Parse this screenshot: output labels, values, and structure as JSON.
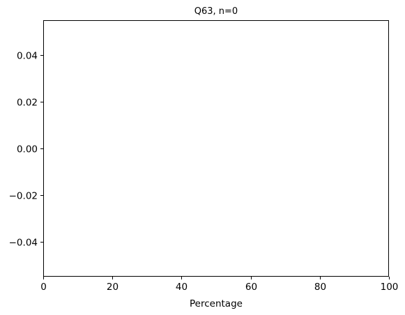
{
  "chart_data": {
    "type": "bar",
    "title": "Q63, n=0",
    "xlabel": "Percentage",
    "ylabel": "",
    "xlim": [
      0,
      100
    ],
    "ylim": [
      -0.055,
      0.055
    ],
    "x_ticks": [
      0,
      20,
      40,
      60,
      80,
      100
    ],
    "x_tick_labels": [
      "0",
      "20",
      "40",
      "60",
      "80",
      "100"
    ],
    "y_ticks": [
      -0.04,
      -0.02,
      0.0,
      0.02,
      0.04
    ],
    "y_tick_labels": [
      "−0.04",
      "−0.02",
      "0.00",
      "0.02",
      "0.04"
    ],
    "categories": [],
    "values": [],
    "grid": false,
    "legend": "none"
  }
}
